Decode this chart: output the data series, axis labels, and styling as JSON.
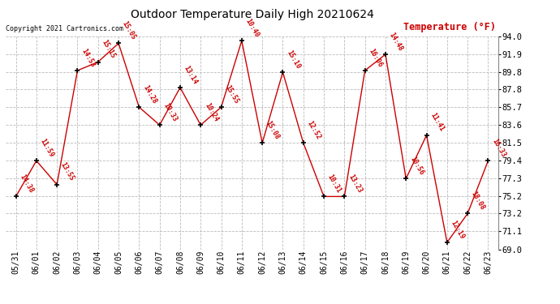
{
  "title": "Outdoor Temperature Daily High 20210624",
  "copyright": "Copyright 2021 Cartronics.com",
  "ylabel": "Temperature (°F)",
  "dates": [
    "05/31",
    "06/01",
    "06/02",
    "06/03",
    "06/04",
    "06/05",
    "06/06",
    "06/07",
    "06/08",
    "06/09",
    "06/10",
    "06/11",
    "06/12",
    "06/13",
    "06/14",
    "06/15",
    "06/16",
    "06/17",
    "06/18",
    "06/19",
    "06/20",
    "06/21",
    "06/22",
    "06/23"
  ],
  "temps": [
    75.2,
    79.4,
    76.6,
    90.0,
    91.0,
    93.2,
    85.7,
    83.6,
    88.0,
    83.6,
    85.7,
    93.5,
    81.5,
    89.8,
    81.5,
    75.2,
    75.2,
    90.0,
    91.9,
    77.3,
    82.4,
    69.8,
    73.2,
    79.4
  ],
  "times": [
    "14:38",
    "11:59",
    "13:55",
    "14:53",
    "15:15",
    "15:05",
    "14:28",
    "10:33",
    "13:14",
    "10:24",
    "15:55",
    "10:40",
    "15:08",
    "15:10",
    "12:52",
    "10:31",
    "13:23",
    "16:06",
    "14:48",
    "10:56",
    "11:41",
    "12:19",
    "18:08",
    "16:33"
  ],
  "ylim_min": 69.0,
  "ylim_max": 94.0,
  "yticks": [
    69.0,
    71.1,
    73.2,
    75.2,
    77.3,
    79.4,
    81.5,
    83.6,
    85.7,
    87.8,
    89.8,
    91.9,
    94.0
  ],
  "line_color": "#cc0000",
  "marker_color": "#000000",
  "bg_color": "#ffffff",
  "grid_color": "#bbbbbb",
  "title_color": "#000000",
  "label_color": "#cc0000",
  "copyright_color": "#000000",
  "figwidth": 6.9,
  "figheight": 3.75,
  "dpi": 100
}
